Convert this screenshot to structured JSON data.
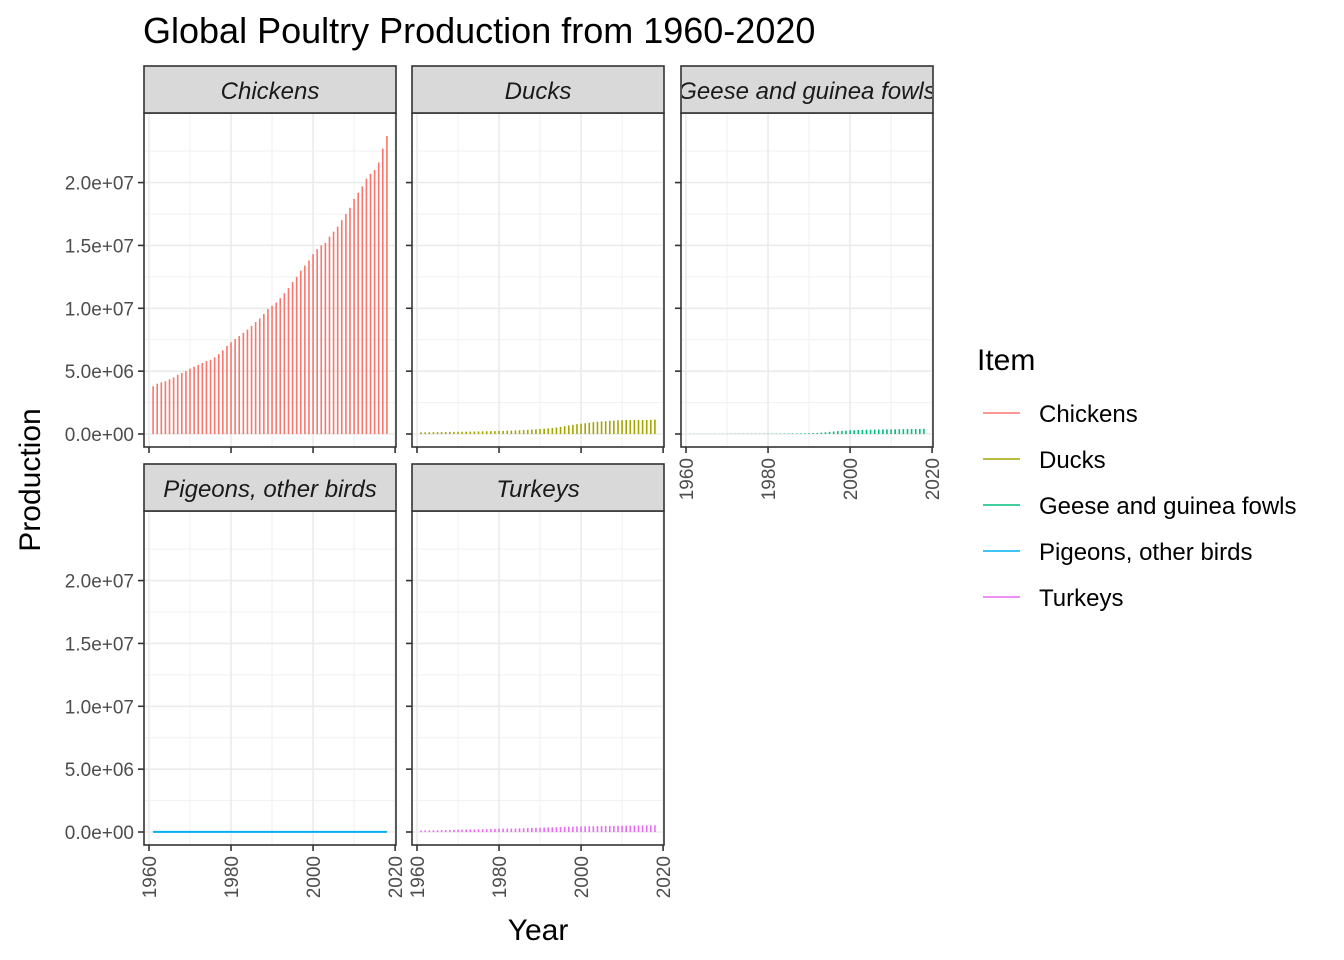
{
  "chart_data": {
    "type": "bar",
    "title": "Global Poultry Production from 1960-2020",
    "xlabel": "Year",
    "ylabel": "Production",
    "xlim": [
      1960,
      2019
    ],
    "ylim": [
      -1000000,
      24500000
    ],
    "x_ticks": [
      "1960",
      "1980",
      "2000",
      "2020"
    ],
    "y_ticks": [
      "0.0e+00",
      "5.0e+06",
      "1.0e+07",
      "1.5e+07",
      "2.0e+07"
    ],
    "facet_layout": "3 columns, 2 rows",
    "grid": true,
    "legend_title": "Item",
    "legend_position": "right",
    "years": [
      1961,
      1962,
      1963,
      1964,
      1965,
      1966,
      1967,
      1968,
      1969,
      1970,
      1971,
      1972,
      1973,
      1974,
      1975,
      1976,
      1977,
      1978,
      1979,
      1980,
      1981,
      1982,
      1983,
      1984,
      1985,
      1986,
      1987,
      1988,
      1989,
      1990,
      1991,
      1992,
      1993,
      1994,
      1995,
      1996,
      1997,
      1998,
      1999,
      2000,
      2001,
      2002,
      2003,
      2004,
      2005,
      2006,
      2007,
      2008,
      2009,
      2010,
      2011,
      2012,
      2013,
      2014,
      2015,
      2016,
      2017,
      2018
    ],
    "series": [
      {
        "name": "Chickens",
        "color": "#F8766D",
        "facet": "Chickens",
        "values": [
          3800000,
          4000000,
          4100000,
          4200000,
          4350000,
          4500000,
          4700000,
          4850000,
          5000000,
          5200000,
          5350000,
          5500000,
          5650000,
          5800000,
          5900000,
          6100000,
          6350000,
          6650000,
          7000000,
          7300000,
          7550000,
          7800000,
          8050000,
          8300000,
          8600000,
          8900000,
          9200000,
          9550000,
          9950000,
          10200000,
          10450000,
          10800000,
          11200000,
          11600000,
          12100000,
          12500000,
          13000000,
          13400000,
          13800000,
          14300000,
          14700000,
          15000000,
          15200000,
          15700000,
          16100000,
          16500000,
          17000000,
          17500000,
          18000000,
          18700000,
          19200000,
          19700000,
          20300000,
          20700000,
          21000000,
          21600000,
          22700000,
          23700000
        ]
      },
      {
        "name": "Ducks",
        "color": "#A3A500",
        "facet": "Ducks",
        "values": [
          130000,
          135000,
          140000,
          145000,
          150000,
          155000,
          160000,
          165000,
          170000,
          175000,
          180000,
          185000,
          190000,
          200000,
          205000,
          210000,
          220000,
          225000,
          230000,
          240000,
          250000,
          260000,
          270000,
          280000,
          300000,
          310000,
          330000,
          350000,
          370000,
          400000,
          420000,
          450000,
          480000,
          520000,
          560000,
          620000,
          680000,
          730000,
          780000,
          820000,
          860000,
          900000,
          940000,
          980000,
          1000000,
          1020000,
          1050000,
          1070000,
          1090000,
          1100000,
          1110000,
          1100000,
          1110000,
          1120000,
          1110000,
          1120000,
          1130000,
          1150000
        ]
      },
      {
        "name": "Geese and guinea fowls",
        "color": "#00BF7D",
        "facet": "Geese and guinea fowls",
        "values": [
          10000,
          10500,
          11000,
          11500,
          12000,
          12500,
          13000,
          13500,
          14000,
          15000,
          16000,
          17000,
          18000,
          19000,
          20000,
          21000,
          22000,
          23000,
          24000,
          25000,
          26000,
          28000,
          30000,
          32000,
          35000,
          38000,
          42000,
          47000,
          53000,
          60000,
          70000,
          85000,
          110000,
          140000,
          170000,
          200000,
          230000,
          250000,
          270000,
          290000,
          300000,
          320000,
          330000,
          340000,
          345000,
          350000,
          355000,
          360000,
          365000,
          370000,
          375000,
          380000,
          385000,
          390000,
          395000,
          400000,
          405000,
          410000
        ]
      },
      {
        "name": "Pigeons, other birds",
        "color": "#00B0F6",
        "facet": "Pigeons, other birds",
        "values": [
          10000,
          10000,
          10000,
          10000,
          10000,
          10000,
          10000,
          10000,
          10000,
          10000,
          10000,
          10000,
          10000,
          10000,
          10000,
          10000,
          10000,
          10000,
          10000,
          10000,
          10000,
          10000,
          10000,
          10000,
          10000,
          10000,
          10000,
          10000,
          10000,
          10000,
          10000,
          10000,
          10000,
          10000,
          10000,
          10000,
          10000,
          10000,
          10000,
          10000,
          10000,
          10000,
          10000,
          10000,
          10000,
          10000,
          10000,
          10000,
          10000,
          10000,
          10000,
          10000,
          10000,
          10000,
          10000,
          10000,
          10000,
          10000
        ]
      },
      {
        "name": "Turkeys",
        "color": "#E76BF3",
        "facet": "Turkeys",
        "values": [
          120000,
          125000,
          130000,
          135000,
          140000,
          150000,
          160000,
          170000,
          175000,
          180000,
          190000,
          200000,
          205000,
          210000,
          215000,
          220000,
          230000,
          240000,
          250000,
          260000,
          265000,
          270000,
          275000,
          280000,
          290000,
          300000,
          310000,
          320000,
          330000,
          345000,
          355000,
          365000,
          375000,
          385000,
          395000,
          405000,
          420000,
          430000,
          440000,
          450000,
          455000,
          460000,
          465000,
          470000,
          475000,
          480000,
          485000,
          490000,
          495000,
          500000,
          505000,
          510000,
          515000,
          520000,
          525000,
          530000,
          535000,
          540000
        ]
      }
    ]
  }
}
